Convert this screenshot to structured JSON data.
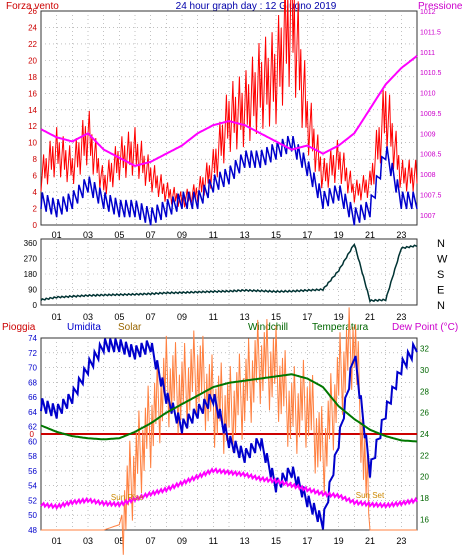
{
  "header": {
    "left_label": "Forza vento",
    "center_title": "24 hour graph day : 12 Giugno 2019",
    "right_label": "Pressione"
  },
  "colors": {
    "wind_gust": "#ff0000",
    "wind_avg": "#0000cc",
    "pressure": "#ff00ff",
    "direction": "#003333",
    "rain": "#cc0000",
    "humidity": "#0000cc",
    "solar": "#ff8040",
    "windchill": "#007700",
    "temperature": "#007700",
    "dewpoint": "#ff00ff"
  },
  "chart_data": [
    {
      "type": "line",
      "x_ticks": [
        "01",
        "03",
        "05",
        "07",
        "09",
        "11",
        "13",
        "15",
        "17",
        "19",
        "21",
        "23"
      ],
      "y_left_ticks": [
        "0",
        "2",
        "4",
        "6",
        "8",
        "10",
        "12",
        "14",
        "16",
        "18",
        "20",
        "22",
        "24",
        "26"
      ],
      "y_right_ticks": [
        "1007",
        "1007.5",
        "1008",
        "1008.5",
        "1009",
        "1009.5",
        "1010",
        "1010.5",
        "1011",
        "1011.5",
        "1012"
      ],
      "ylim_left": [
        0,
        26
      ],
      "ylim_right": [
        1006.75,
        1012
      ],
      "series": [
        {
          "key": "gust",
          "x": [
            0,
            1,
            2,
            3,
            4,
            5,
            6,
            7,
            8,
            9,
            10,
            11,
            12,
            13,
            14,
            15,
            16,
            17,
            18,
            19,
            20,
            21,
            22,
            23,
            24
          ],
          "values": [
            6,
            9,
            7,
            11,
            5,
            8,
            9,
            6,
            4,
            3,
            4,
            7,
            13,
            14,
            17,
            18,
            26,
            13,
            6,
            8,
            4,
            5,
            14,
            6,
            6
          ]
        },
        {
          "key": "avg",
          "x": [
            0,
            1,
            2,
            3,
            4,
            5,
            6,
            7,
            8,
            9,
            10,
            11,
            12,
            13,
            14,
            15,
            16,
            17,
            18,
            19,
            20,
            21,
            22,
            23,
            24
          ],
          "values": [
            3,
            2,
            3,
            5,
            3,
            2,
            2,
            1,
            2,
            3,
            3,
            5,
            6,
            8,
            8,
            9,
            10,
            7,
            3,
            4,
            1,
            2,
            9,
            3,
            3
          ]
        },
        {
          "key": "pressure",
          "x": [
            0,
            1,
            2,
            3,
            4,
            5,
            6,
            7,
            8,
            9,
            10,
            11,
            12,
            13,
            14,
            15,
            16,
            17,
            18,
            19,
            20,
            21,
            22,
            23,
            24
          ],
          "values": [
            1009.1,
            1008.9,
            1008.8,
            1009.0,
            1008.6,
            1008.4,
            1008.2,
            1008.3,
            1008.5,
            1008.7,
            1009.0,
            1009.2,
            1009.3,
            1009.2,
            1009.0,
            1008.8,
            1008.6,
            1008.7,
            1008.5,
            1008.7,
            1009.0,
            1009.6,
            1010.2,
            1010.6,
            1010.9
          ]
        }
      ]
    },
    {
      "type": "line",
      "x_ticks": [
        "01",
        "03",
        "05",
        "07",
        "09",
        "11",
        "13",
        "15",
        "17",
        "19",
        "21",
        "23"
      ],
      "y_ticks": [
        "0",
        "90",
        "180",
        "270",
        "360"
      ],
      "compass_labels": [
        "N",
        "W",
        "S",
        "E",
        "N"
      ],
      "ylim": [
        0,
        360
      ],
      "series": [
        {
          "key": "direction",
          "x": [
            0,
            1,
            2,
            3,
            4,
            5,
            6,
            7,
            8,
            9,
            10,
            11,
            12,
            13,
            14,
            15,
            16,
            17,
            18,
            19,
            20,
            21,
            22,
            23,
            24
          ],
          "values": [
            30,
            45,
            50,
            55,
            58,
            60,
            62,
            65,
            70,
            72,
            75,
            78,
            80,
            85,
            82,
            78,
            80,
            85,
            90,
            200,
            355,
            25,
            30,
            330,
            345
          ]
        }
      ]
    },
    {
      "type": "line",
      "legend": [
        "Pioggia",
        "Umidita",
        "Solar",
        "Windchill",
        "Temperatura",
        "Dew Point (°C)"
      ],
      "x_ticks": [
        "01",
        "03",
        "05",
        "07",
        "09",
        "11",
        "13",
        "15",
        "17",
        "19",
        "21",
        "23"
      ],
      "y_left_ticks": [
        "48",
        "50",
        "52",
        "54",
        "56",
        "58",
        "60",
        "62",
        "64",
        "66",
        "68",
        "70",
        "72",
        "74"
      ],
      "y_right_ticks": [
        "16",
        "18",
        "20",
        "22",
        "24",
        "26",
        "28",
        "30",
        "32"
      ],
      "rain_axis_label": "0",
      "annotations": [
        "Sun Rise",
        "Sun Set"
      ],
      "ylim_left": [
        48,
        74
      ],
      "ylim_right": [
        15,
        33
      ],
      "series": [
        {
          "key": "humidity",
          "x": [
            0,
            1,
            2,
            3,
            4,
            5,
            6,
            7,
            8,
            9,
            10,
            11,
            12,
            13,
            14,
            15,
            16,
            17,
            18,
            19,
            20,
            21,
            22,
            23,
            24
          ],
          "values": [
            65,
            64,
            66,
            70,
            73,
            73,
            72,
            73,
            66,
            62,
            64,
            66,
            60,
            58,
            60,
            54,
            56,
            52,
            49,
            60,
            72,
            56,
            64,
            70,
            73
          ]
        },
        {
          "key": "temperature",
          "x": [
            0,
            1,
            2,
            3,
            4,
            5,
            6,
            7,
            8,
            9,
            10,
            11,
            12,
            13,
            14,
            15,
            16,
            17,
            18,
            19,
            20,
            21,
            22,
            23,
            24
          ],
          "values": [
            24.8,
            24.2,
            23.8,
            23.6,
            23.5,
            23.6,
            24.2,
            25.0,
            26.0,
            26.8,
            27.6,
            28.4,
            28.8,
            29.0,
            29.2,
            29.4,
            29.6,
            29.2,
            28.4,
            26.6,
            25.4,
            24.4,
            23.8,
            23.4,
            23.3
          ]
        },
        {
          "key": "dewpoint",
          "x": [
            0,
            1,
            2,
            3,
            4,
            5,
            6,
            7,
            8,
            9,
            10,
            11,
            12,
            13,
            14,
            15,
            16,
            17,
            18,
            19,
            20,
            21,
            22,
            23,
            24
          ],
          "values": [
            17.4,
            17.2,
            17.6,
            17.8,
            17.5,
            17.4,
            17.9,
            18.4,
            18.8,
            19.4,
            20.0,
            20.6,
            20.4,
            20.2,
            19.8,
            19.6,
            19.2,
            18.8,
            18.4,
            18.2,
            17.6,
            17.4,
            17.3,
            17.5,
            17.8
          ]
        },
        {
          "key": "solar",
          "x": [
            0,
            1,
            2,
            3,
            4,
            5,
            6,
            7,
            8,
            9,
            10,
            11,
            12,
            13,
            14,
            15,
            16,
            17,
            18,
            19,
            20,
            21,
            22,
            23,
            24
          ],
          "values": [
            15,
            15,
            15,
            15,
            15,
            15.5,
            21,
            25,
            29,
            28,
            30,
            27,
            26,
            28,
            31,
            30,
            26,
            27,
            22,
            29,
            33,
            15,
            15,
            15,
            15
          ]
        }
      ]
    }
  ]
}
